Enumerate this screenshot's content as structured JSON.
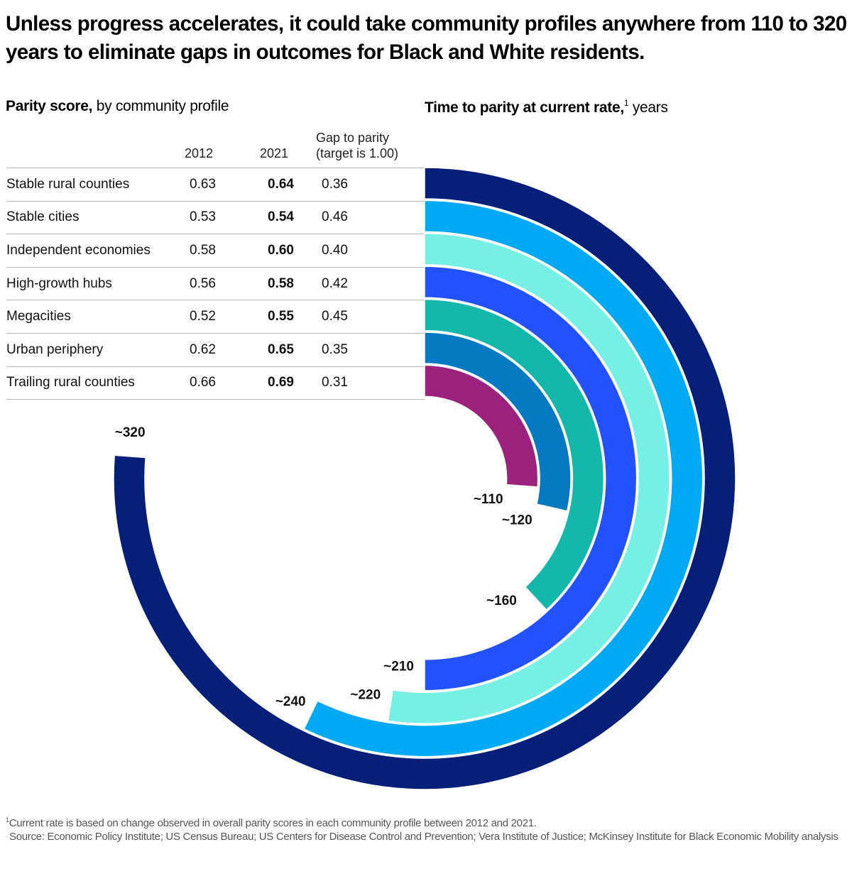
{
  "title": "Unless progress accelerates, it could take community profiles anywhere from 110 to 320 years to eliminate gaps in outcomes for Black and White residents.",
  "left_subhead": {
    "bold": "Parity score,",
    "rest": " by community profile"
  },
  "right_subhead": {
    "bold": "Time to parity at current rate,",
    "sup": "1",
    "rest": " years"
  },
  "table": {
    "headers": {
      "y2012": "2012",
      "y2021": "2021",
      "gap_line1": "Gap to parity",
      "gap_line2": "(target is 1.00)"
    },
    "rows": [
      {
        "name": "Stable rural counties",
        "y2012": "0.63",
        "y2021": "0.64",
        "gap": "0.36"
      },
      {
        "name": "Stable cities",
        "y2012": "0.53",
        "y2021": "0.54",
        "gap": "0.46"
      },
      {
        "name": "Independent economies",
        "y2012": "0.58",
        "y2021": "0.60",
        "gap": "0.40"
      },
      {
        "name": "High-growth hubs",
        "y2012": "0.56",
        "y2021": "0.58",
        "gap": "0.42"
      },
      {
        "name": "Megacities",
        "y2012": "0.52",
        "y2021": "0.55",
        "gap": "0.45"
      },
      {
        "name": "Urban periphery",
        "y2012": "0.62",
        "y2021": "0.65",
        "gap": "0.35"
      },
      {
        "name": "Trailing rural counties",
        "y2012": "0.66",
        "y2021": "0.69",
        "gap": "0.31"
      }
    ]
  },
  "chart_data": {
    "type": "radial-bar",
    "title": "Time to parity at current rate, years",
    "unit": "years",
    "full_circle_value": 420,
    "series": [
      {
        "name": "Stable rural counties",
        "value": 320,
        "label": "~320",
        "color": "#061f79"
      },
      {
        "name": "Stable cities",
        "value": 240,
        "label": "~240",
        "color": "#00a9f4"
      },
      {
        "name": "Independent economies",
        "value": 220,
        "label": "~220",
        "color": "#76f0e5"
      },
      {
        "name": "High-growth hubs",
        "value": 210,
        "label": "~210",
        "color": "#2251ff"
      },
      {
        "name": "Megacities",
        "value": 160,
        "label": "~160",
        "color": "#14b8ab"
      },
      {
        "name": "Urban periphery",
        "value": 120,
        "label": "~120",
        "color": "#0679c3"
      },
      {
        "name": "Trailing rural counties",
        "value": 110,
        "label": "~110",
        "color": "#9c217d"
      }
    ]
  },
  "footnote": {
    "sup": "1",
    "text": "Current rate is based on change observed in overall parity scores in each community profile between 2012 and 2021.",
    "source": "Source: Economic Policy Institute; US Census Bureau; US Centers for Disease Control and Prevention; Vera Institute of Justice; McKinsey Institute for Black Economic Mobility analysis"
  }
}
